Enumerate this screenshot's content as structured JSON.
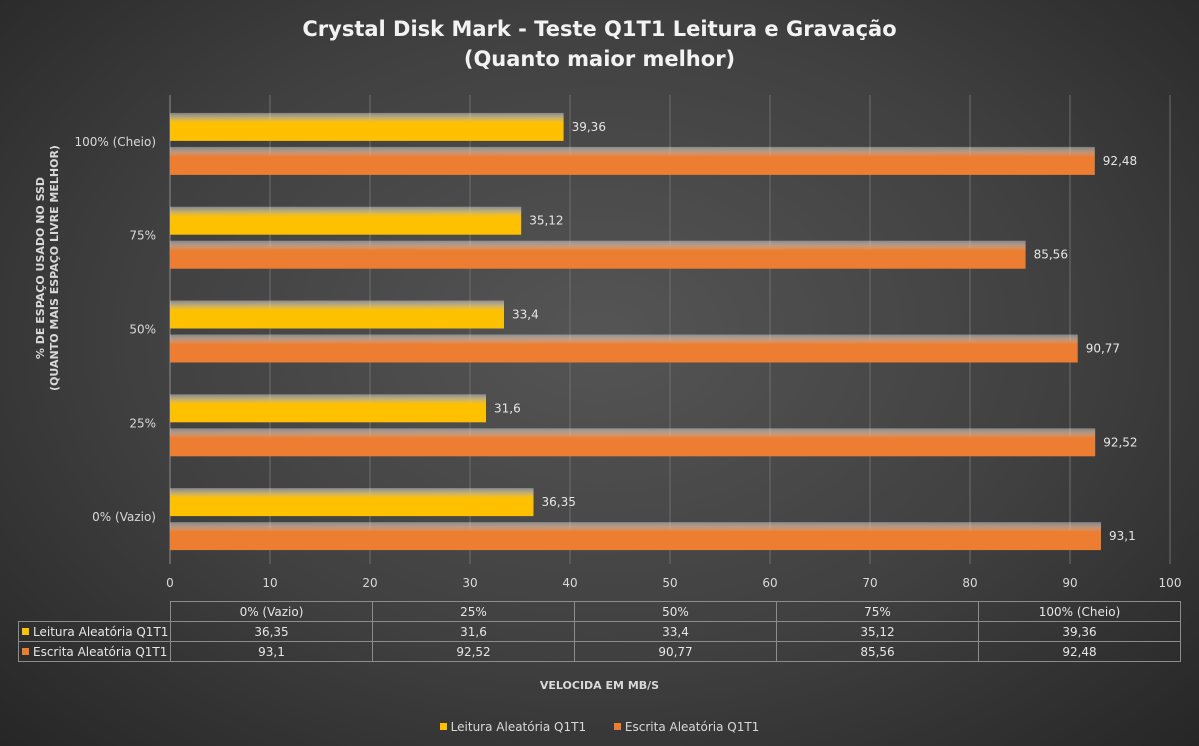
{
  "chart_data": {
    "type": "bar",
    "orientation": "horizontal",
    "title": [
      "Crystal Disk Mark - Teste Q1T1 Leitura e Gravação",
      "(Quanto maior melhor)"
    ],
    "ylabel": [
      "% DE ESPAÇO USADO NO SSD",
      "(QUANTO MAIS ESPAÇO LIVRE MELHOR)"
    ],
    "xlabel": "VELOCIDA EM MB/S",
    "categories": [
      "0% (Vazio)",
      "25%",
      "50%",
      "75%",
      "100% (Cheio)"
    ],
    "series": [
      {
        "name": "Leitura Aleatória Q1T1",
        "color": "#ffc000",
        "values": [
          36.35,
          31.6,
          33.4,
          35.12,
          39.36
        ],
        "labels": [
          "36,35",
          "31,6",
          "33,4",
          "35,12",
          "39,36"
        ]
      },
      {
        "name": "Escrita Aleatória Q1T1",
        "color": "#ed7d31",
        "values": [
          93.1,
          92.52,
          90.77,
          85.56,
          92.48
        ],
        "labels": [
          "93,1",
          "92,52",
          "90,77",
          "85,56",
          "92,48"
        ]
      }
    ],
    "xlim": [
      0,
      100
    ],
    "xticks": [
      0,
      10,
      20,
      30,
      40,
      50,
      60,
      70,
      80,
      90,
      100
    ],
    "grid": true,
    "legend_position": "bottom",
    "data_table": true
  }
}
